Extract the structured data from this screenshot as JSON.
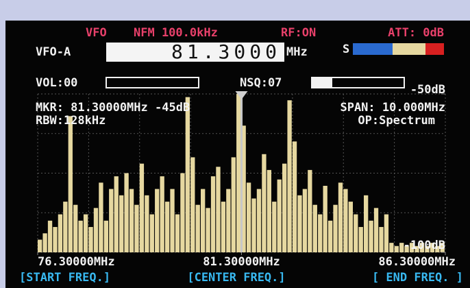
{
  "header": {
    "vfo_mode": "VFO",
    "modulation": "NFM 100.0kHz",
    "rf": "RF:ON",
    "att": "ATT: 0dB"
  },
  "vfo": {
    "label": "VFO-A",
    "frequency": "81.3000",
    "unit": "MHz",
    "s_meter_label": "S"
  },
  "controls": {
    "vol": "VOL:00",
    "nsq": "NSQ:07"
  },
  "info": {
    "marker": "MKR: 81.30000MHz -45dB",
    "span": "SPAN: 10.000MHz",
    "rbw": "RBW:128kHz",
    "op": "OP:Spectrum"
  },
  "spectrum": {
    "ylim": [
      -100,
      -50
    ],
    "yticks": [
      {
        "value": -50,
        "label": "-50dB"
      },
      {
        "value": -100,
        "label": "-100dB"
      }
    ],
    "xlim": [
      76.3,
      86.3
    ],
    "xticks": [
      {
        "value": 76.3,
        "label": "76.30000MHz"
      },
      {
        "value": 81.3,
        "label": "81.30000MHz"
      },
      {
        "value": 86.3,
        "label": "86.30000MHz"
      }
    ],
    "color": "#e6d8a0",
    "values": [
      -96,
      -94,
      -90,
      -92,
      -88,
      -84,
      -57,
      -85,
      -90,
      -88,
      -92,
      -86,
      -78,
      -90,
      -80,
      -76,
      -82,
      -75,
      -80,
      -85,
      -72,
      -82,
      -88,
      -80,
      -76,
      -84,
      -80,
      -88,
      -75,
      -51,
      -70,
      -85,
      -80,
      -86,
      -76,
      -73,
      -84,
      -80,
      -70,
      -50,
      -60,
      -78,
      -83,
      -80,
      -69,
      -74,
      -84,
      -77,
      -72,
      -52,
      -65,
      -82,
      -80,
      -74,
      -85,
      -88,
      -79,
      -90,
      -85,
      -78,
      -80,
      -84,
      -88,
      -92,
      -82,
      -90,
      -86,
      -92,
      -88,
      -97,
      -98,
      -97,
      -98,
      -97,
      -98,
      -97,
      -98,
      -97,
      -98,
      -97
    ]
  },
  "softkeys": [
    "[START FREQ.]",
    "[CENTER FREQ.]",
    "[ END FREQ. ]"
  ]
}
